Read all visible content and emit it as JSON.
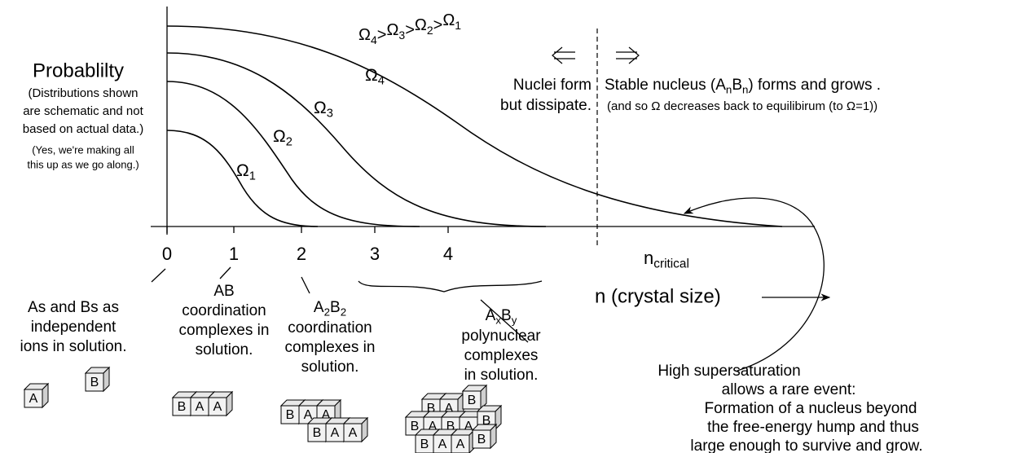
{
  "y_axis_label": "Probablilty",
  "note": [
    "(Distributions shown",
    "are schematic and not",
    "based on actual data.)"
  ],
  "aside": [
    "(Yes, we're making all",
    "this up as we go along.)"
  ],
  "curves": [
    {
      "symbol": "Ω",
      "subscript": "1"
    },
    {
      "symbol": "Ω",
      "subscript": "2"
    },
    {
      "symbol": "Ω",
      "subscript": "3"
    },
    {
      "symbol": "Ω",
      "subscript": "4"
    }
  ],
  "ordering": {
    "terms": [
      {
        "symbol": "Ω",
        "subscript": "4"
      },
      {
        "symbol": "Ω",
        "subscript": "3"
      },
      {
        "symbol": "Ω",
        "subscript": "2"
      },
      {
        "symbol": "Ω",
        "subscript": "1"
      }
    ],
    "separator": ">"
  },
  "x_ticks": [
    "0",
    "1",
    "2",
    "3",
    "4"
  ],
  "n_critical": {
    "base": "n",
    "subscript": "critical"
  },
  "x_axis_label": "n (crystal size)",
  "left_region": [
    "Nuclei form",
    "but dissipate."
  ],
  "right_region": {
    "line1": {
      "pre": "Stable nucleus (A",
      "sub1": "n",
      "mid": "B",
      "sub2": "n",
      "post": ") forms and grows ."
    },
    "line2": "(and so Ω decreases back to equilibirum (to Ω=1))"
  },
  "species": [
    {
      "lines": [
        "As and Bs as",
        "independent",
        "ions in solution."
      ]
    },
    {
      "lines": [
        "AB",
        "coordination",
        "complexes in",
        "solution."
      ]
    },
    {
      "formula": {
        "a": "A",
        "a_sub": "2",
        "b": "B",
        "b_sub": "2"
      },
      "lines": [
        "coordination",
        "complexes in",
        "solution."
      ]
    },
    {
      "formula": {
        "a": "A",
        "a_sub": "x",
        "b": "B",
        "b_sub": "y"
      },
      "lines": [
        "polynuclear",
        "complexes",
        "in solution."
      ]
    }
  ],
  "event": [
    "High supersaturation",
    "allows a rare event:",
    "Formation of a nucleus  beyond",
    "the free-energy hump  and thus",
    "large enough to survive and grow."
  ],
  "block_letters": {
    "a": "A",
    "b": "B"
  }
}
